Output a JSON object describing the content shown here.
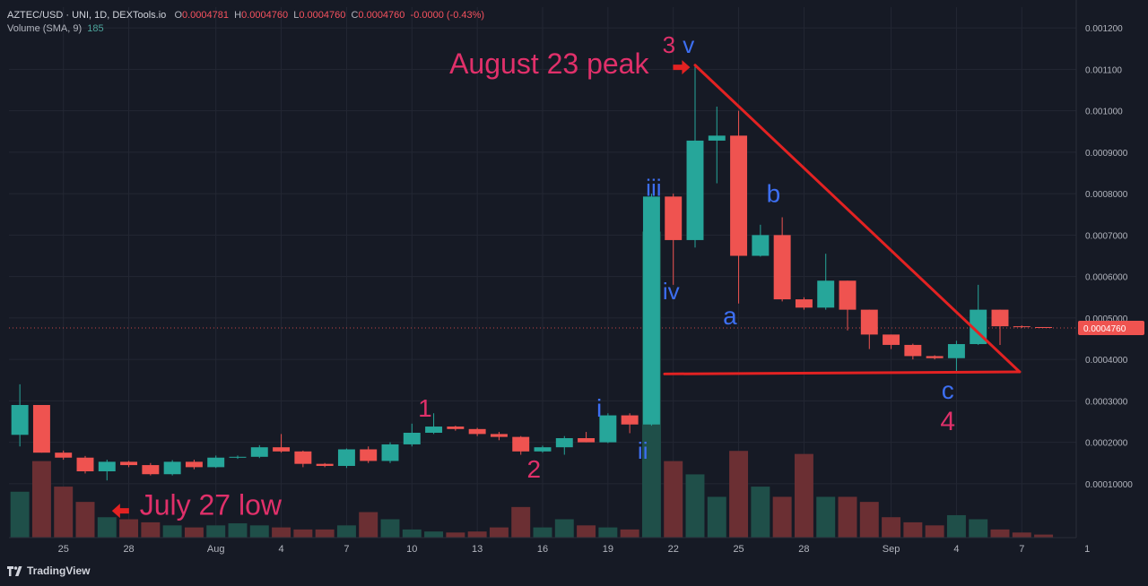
{
  "header": {
    "symbol": "AZTEC/USD · UNI, 1D, DEXTools.io",
    "o_label": "O",
    "o_value": "0.0004781",
    "h_label": "H",
    "h_value": "0.0004760",
    "l_label": "L",
    "l_value": "0.0004760",
    "c_label": "C",
    "c_value": "0.0004760",
    "change": "-0.0000 (-0.43%)",
    "volume_label": "Volume (SMA, 9)",
    "volume_value": "185"
  },
  "footer": {
    "brand": "TradingView"
  },
  "colors": {
    "background": "#161a25",
    "up": "#26a69a",
    "down": "#ef5350",
    "vol_up": "#1f4f49",
    "vol_down": "#6b2f33",
    "grid": "#232733",
    "axis_text": "#b2b5be",
    "pink": "#e0306a",
    "blue": "#3d6ff2",
    "trend": "#e32222",
    "price_tag": "#ef5350"
  },
  "chart_data": {
    "type": "candlestick",
    "y_axis": {
      "range": [
        -3e-05,
        0.00125
      ],
      "ticks": [
        0.0001,
        0.0002,
        0.0003,
        0.0004,
        0.0005,
        0.0006,
        0.0007,
        0.0008,
        0.0009,
        0.001,
        0.0011,
        0.0012
      ],
      "tick_labels": [
        "0.00010000",
        "0.0002000",
        "0.0003000",
        "0.0004000",
        "0.0005000",
        "0.0006000",
        "0.0007000",
        "0.0008000",
        "0.0009000",
        "0.001000",
        "0.001100",
        "0.001200"
      ]
    },
    "x_axis": {
      "day_range": [
        -0.5,
        48.5
      ],
      "ticks": [
        {
          "day": 2,
          "label": "25"
        },
        {
          "day": 5,
          "label": "28"
        },
        {
          "day": 9,
          "label": "Aug"
        },
        {
          "day": 12,
          "label": "4"
        },
        {
          "day": 15,
          "label": "7"
        },
        {
          "day": 18,
          "label": "10"
        },
        {
          "day": 21,
          "label": "13"
        },
        {
          "day": 24,
          "label": "16"
        },
        {
          "day": 27,
          "label": "19"
        },
        {
          "day": 30,
          "label": "22"
        },
        {
          "day": 33,
          "label": "25"
        },
        {
          "day": 36,
          "label": "28"
        },
        {
          "day": 40,
          "label": "Sep"
        },
        {
          "day": 43,
          "label": "4"
        },
        {
          "day": 46,
          "label": "7"
        },
        {
          "day": 49,
          "label": "1"
        }
      ]
    },
    "candles": [
      {
        "o": 0.000218,
        "h": 0.00034,
        "l": 0.00019,
        "c": 0.00029
      },
      {
        "o": 0.00029,
        "h": 0.00029,
        "l": 0.000175,
        "c": 0.000175
      },
      {
        "o": 0.000175,
        "h": 0.00018,
        "l": 0.000158,
        "c": 0.000163
      },
      {
        "o": 0.000163,
        "h": 0.000167,
        "l": 0.000125,
        "c": 0.00013
      },
      {
        "o": 0.00013,
        "h": 0.000158,
        "l": 0.000108,
        "c": 0.000153
      },
      {
        "o": 0.000153,
        "h": 0.000155,
        "l": 0.00014,
        "c": 0.000145
      },
      {
        "o": 0.000145,
        "h": 0.00015,
        "l": 0.00012,
        "c": 0.000123
      },
      {
        "o": 0.000123,
        "h": 0.000157,
        "l": 0.00012,
        "c": 0.000153
      },
      {
        "o": 0.000153,
        "h": 0.000158,
        "l": 0.000135,
        "c": 0.00014
      },
      {
        "o": 0.00014,
        "h": 0.000168,
        "l": 0.000138,
        "c": 0.000163
      },
      {
        "o": 0.000163,
        "h": 0.000168,
        "l": 0.00016,
        "c": 0.000165
      },
      {
        "o": 0.000165,
        "h": 0.000193,
        "l": 0.000162,
        "c": 0.000188
      },
      {
        "o": 0.000188,
        "h": 0.00022,
        "l": 0.000175,
        "c": 0.000178
      },
      {
        "o": 0.000178,
        "h": 0.00018,
        "l": 0.00014,
        "c": 0.000148
      },
      {
        "o": 0.000148,
        "h": 0.00015,
        "l": 0.00014,
        "c": 0.000143
      },
      {
        "o": 0.000143,
        "h": 0.000185,
        "l": 0.000138,
        "c": 0.000183
      },
      {
        "o": 0.000183,
        "h": 0.00019,
        "l": 0.00015,
        "c": 0.000155
      },
      {
        "o": 0.000155,
        "h": 0.0002,
        "l": 0.00015,
        "c": 0.000195
      },
      {
        "o": 0.000195,
        "h": 0.000245,
        "l": 0.00019,
        "c": 0.000223
      },
      {
        "o": 0.000223,
        "h": 0.00027,
        "l": 0.00022,
        "c": 0.000238
      },
      {
        "o": 0.000238,
        "h": 0.00024,
        "l": 0.000228,
        "c": 0.000232
      },
      {
        "o": 0.000232,
        "h": 0.000235,
        "l": 0.000215,
        "c": 0.00022
      },
      {
        "o": 0.00022,
        "h": 0.000225,
        "l": 0.000205,
        "c": 0.000213
      },
      {
        "o": 0.000213,
        "h": 0.000215,
        "l": 0.00017,
        "c": 0.000178
      },
      {
        "o": 0.000178,
        "h": 0.000192,
        "l": 0.000175,
        "c": 0.000188
      },
      {
        "o": 0.000188,
        "h": 0.000215,
        "l": 0.00017,
        "c": 0.00021
      },
      {
        "o": 0.00021,
        "h": 0.000225,
        "l": 0.0002,
        "c": 0.0002
      },
      {
        "o": 0.0002,
        "h": 0.00027,
        "l": 0.000198,
        "c": 0.000265
      },
      {
        "o": 0.000265,
        "h": 0.00027,
        "l": 0.000222,
        "c": 0.000243
      },
      {
        "o": 0.000243,
        "h": 0.0008,
        "l": 0.00024,
        "c": 0.000793
      },
      {
        "o": 0.000793,
        "h": 0.0008,
        "l": 0.00058,
        "c": 0.000688
      },
      {
        "o": 0.000688,
        "h": 0.00111,
        "l": 0.00067,
        "c": 0.000928
      },
      {
        "o": 0.000928,
        "h": 0.00101,
        "l": 0.000825,
        "c": 0.00094
      },
      {
        "o": 0.00094,
        "h": 0.001,
        "l": 0.000535,
        "c": 0.00065
      },
      {
        "o": 0.00065,
        "h": 0.000725,
        "l": 0.000648,
        "c": 0.0007
      },
      {
        "o": 0.0007,
        "h": 0.000743,
        "l": 0.00054,
        "c": 0.000545
      },
      {
        "o": 0.000545,
        "h": 0.00055,
        "l": 0.00052,
        "c": 0.000525
      },
      {
        "o": 0.000525,
        "h": 0.000655,
        "l": 0.00052,
        "c": 0.00059
      },
      {
        "o": 0.00059,
        "h": 0.00059,
        "l": 0.00047,
        "c": 0.00052
      },
      {
        "o": 0.00052,
        "h": 0.00052,
        "l": 0.000425,
        "c": 0.00046
      },
      {
        "o": 0.00046,
        "h": 0.00046,
        "l": 0.000425,
        "c": 0.000435
      },
      {
        "o": 0.000435,
        "h": 0.000438,
        "l": 0.0004,
        "c": 0.000408
      },
      {
        "o": 0.000408,
        "h": 0.00041,
        "l": 0.0004,
        "c": 0.000403
      },
      {
        "o": 0.000403,
        "h": 0.000445,
        "l": 0.00037,
        "c": 0.000437
      },
      {
        "o": 0.000437,
        "h": 0.00058,
        "l": 0.000435,
        "c": 0.00052
      },
      {
        "o": 0.00052,
        "h": 0.00052,
        "l": 0.000435,
        "c": 0.00048
      },
      {
        "o": 0.00048,
        "h": 0.000482,
        "l": 0.000476,
        "c": 0.000478
      },
      {
        "o": 0.0004781,
        "h": 0.000476,
        "l": 0.000476,
        "c": 0.000476
      }
    ],
    "volume": [
      45,
      75,
      50,
      35,
      20,
      18,
      15,
      12,
      10,
      12,
      14,
      12,
      10,
      8,
      8,
      12,
      25,
      18,
      8,
      6,
      5,
      6,
      10,
      30,
      10,
      18,
      12,
      10,
      8,
      300,
      75,
      62,
      40,
      85,
      50,
      40,
      82,
      40,
      40,
      35,
      20,
      15,
      12,
      22,
      18,
      8,
      5,
      3
    ],
    "volume_max": 520,
    "last_price_label": "0.0004760",
    "last_price": 0.000476,
    "trendlines": [
      {
        "from": {
          "day": 31,
          "price": 0.00111
        },
        "to": {
          "day": 45.9,
          "price": 0.00037
        }
      },
      {
        "from": {
          "day": 29.6,
          "price": 0.000365
        },
        "to": {
          "day": 45.9,
          "price": 0.00037
        }
      }
    ],
    "annotations": [
      {
        "text": "August 23 peak",
        "day": 24.3,
        "price": 0.00109,
        "color": "pink",
        "size": 32,
        "anchor": "middle"
      },
      {
        "text": "3",
        "day": 29.8,
        "price": 0.00114,
        "color": "pink",
        "size": 26,
        "anchor": "middle"
      },
      {
        "text": "v",
        "day": 30.7,
        "price": 0.00114,
        "color": "blue",
        "size": 26,
        "anchor": "middle"
      },
      {
        "text": "iii",
        "day": 29.1,
        "price": 0.000795,
        "color": "blue",
        "size": 26,
        "anchor": "middle"
      },
      {
        "text": "b",
        "day": 34.6,
        "price": 0.00078,
        "color": "blue",
        "size": 28,
        "anchor": "middle"
      },
      {
        "text": "iv",
        "day": 29.9,
        "price": 0.000545,
        "color": "blue",
        "size": 26,
        "anchor": "middle"
      },
      {
        "text": "a",
        "day": 32.6,
        "price": 0.000485,
        "color": "blue",
        "size": 28,
        "anchor": "middle"
      },
      {
        "text": "1",
        "day": 18.6,
        "price": 0.000262,
        "color": "pink",
        "size": 28,
        "anchor": "middle"
      },
      {
        "text": "i",
        "day": 26.6,
        "price": 0.000262,
        "color": "blue",
        "size": 28,
        "anchor": "middle"
      },
      {
        "text": "2",
        "day": 23.6,
        "price": 0.000115,
        "color": "pink",
        "size": 28,
        "anchor": "middle"
      },
      {
        "text": "ii",
        "day": 28.6,
        "price": 0.00016,
        "color": "blue",
        "size": 26,
        "anchor": "middle"
      },
      {
        "text": "c",
        "day": 42.6,
        "price": 0.000305,
        "color": "blue",
        "size": 28,
        "anchor": "middle"
      },
      {
        "text": "4",
        "day": 42.6,
        "price": 0.00023,
        "color": "pink",
        "size": 30,
        "anchor": "middle"
      },
      {
        "text": "July 27 low",
        "day": 5.5,
        "price": 2.55e-05,
        "color": "pink",
        "size": 32,
        "anchor": "start"
      }
    ],
    "arrows": [
      {
        "day": 30.4,
        "price": 0.001105,
        "direction": "right"
      },
      {
        "day": 4.6,
        "price": 3.45e-05,
        "direction": "left"
      }
    ]
  }
}
